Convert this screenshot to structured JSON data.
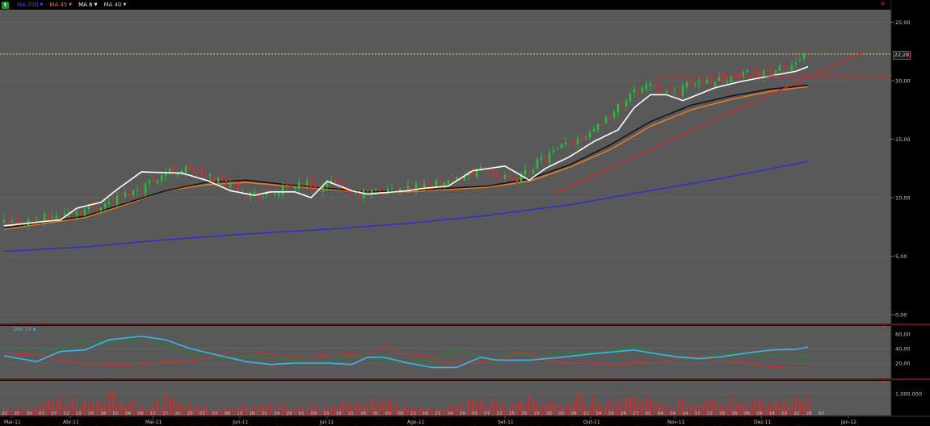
{
  "toolbar": {
    "symbol_icon": "chart-logo-icon",
    "symbol_label": "",
    "ma200_label": "MA 200",
    "ma45_label": "MA 45",
    "ma6_label": "MA 6",
    "ma40_label": "MA 40",
    "colors": {
      "ma200": "#2a2ad8",
      "ma45": "#f07a20",
      "ma6": "#ffffff",
      "ma40": "#101010",
      "symbol": "#e02a2a"
    }
  },
  "panels": {
    "dmi": {
      "label": "DMI 10",
      "color": "#3ab6e8"
    },
    "volume": {
      "label": "",
      "color": "#e02a2a"
    }
  },
  "last_price_label": "22,28",
  "chart_data": {
    "type": "candlestick",
    "title": "",
    "price_axis": {
      "ticks": [
        "25,00",
        "20,00",
        "15,00",
        "10,00",
        "5,00",
        "0,00"
      ],
      "ylim": [
        0,
        26.5
      ]
    },
    "dmi_axis": {
      "ticks": [
        "60,00",
        "40,00",
        "20,00"
      ]
    },
    "volume_axis": {
      "ticks": [
        "1.000.000"
      ]
    },
    "x_day_ticks": [
      "22",
      "25",
      "30",
      "01",
      "07",
      "12",
      "15",
      "20",
      "26",
      "02",
      "04",
      "09",
      "12",
      "17",
      "20",
      "25",
      "01",
      "03",
      "08",
      "13",
      "16",
      "21",
      "24",
      "29",
      "01",
      "08",
      "13",
      "18",
      "21",
      "26",
      "01",
      "03",
      "08",
      "13",
      "16",
      "21",
      "24",
      "29",
      "01",
      "07",
      "12",
      "15",
      "20",
      "23",
      "28",
      "03",
      "06",
      "11",
      "14",
      "19",
      "24",
      "27",
      "01",
      "04",
      "09",
      "14",
      "17",
      "22",
      "25",
      "30",
      "06",
      "09",
      "14",
      "19",
      "22",
      "28",
      "03"
    ],
    "x_month_ticks": [
      "Mar-11",
      "Abr-11",
      "Mai-11",
      "Jun-11",
      "Jul-11",
      "Ago-11",
      "Set-11",
      "Out-11",
      "Nov-11",
      "Dez-11",
      "Jan-12"
    ],
    "price_path": [
      [
        0,
        7.8
      ],
      [
        8,
        8.1
      ],
      [
        20,
        9.0
      ],
      [
        26,
        9.6
      ],
      [
        34,
        10.9
      ],
      [
        40,
        12.2
      ],
      [
        46,
        12.5
      ],
      [
        50,
        11.8
      ],
      [
        56,
        11.3
      ],
      [
        60,
        10.5
      ],
      [
        64,
        10.1
      ],
      [
        70,
        10.8
      ],
      [
        74,
        11.4
      ],
      [
        78,
        10.7
      ],
      [
        83,
        11.4
      ],
      [
        85,
        10.2
      ],
      [
        90,
        10.5
      ],
      [
        96,
        10.6
      ],
      [
        100,
        10.8
      ],
      [
        104,
        11.2
      ],
      [
        110,
        11.2
      ],
      [
        116,
        12.2
      ],
      [
        120,
        12.4
      ],
      [
        126,
        11.2
      ],
      [
        132,
        13.0
      ],
      [
        138,
        14.3
      ],
      [
        144,
        15.5
      ],
      [
        150,
        17.0
      ],
      [
        155,
        18.8
      ],
      [
        160,
        19.8
      ],
      [
        165,
        18.9
      ],
      [
        170,
        19.7
      ],
      [
        176,
        20.1
      ],
      [
        182,
        20.4
      ],
      [
        188,
        20.9
      ],
      [
        194,
        21.0
      ],
      [
        199,
        22.28
      ]
    ],
    "ma6_path": [
      [
        0,
        7.6
      ],
      [
        14,
        8.1
      ],
      [
        18,
        9.1
      ],
      [
        24,
        9.6
      ],
      [
        28,
        10.7
      ],
      [
        34,
        12.2
      ],
      [
        44,
        12.1
      ],
      [
        50,
        11.5
      ],
      [
        56,
        10.6
      ],
      [
        62,
        10.2
      ],
      [
        66,
        10.5
      ],
      [
        72,
        10.5
      ],
      [
        76,
        10.0
      ],
      [
        80,
        11.4
      ],
      [
        86,
        10.6
      ],
      [
        90,
        10.3
      ],
      [
        100,
        10.6
      ],
      [
        104,
        10.8
      ],
      [
        110,
        11.0
      ],
      [
        116,
        12.3
      ],
      [
        120,
        12.5
      ],
      [
        124,
        12.7
      ],
      [
        130,
        11.5
      ],
      [
        134,
        12.5
      ],
      [
        140,
        13.5
      ],
      [
        146,
        14.8
      ],
      [
        152,
        15.8
      ],
      [
        156,
        17.7
      ],
      [
        160,
        18.8
      ],
      [
        164,
        18.8
      ],
      [
        168,
        18.3
      ],
      [
        176,
        19.4
      ],
      [
        182,
        19.9
      ],
      [
        188,
        20.3
      ],
      [
        196,
        20.8
      ],
      [
        199,
        21.2
      ]
    ],
    "ma40_path": [
      [
        0,
        7.4
      ],
      [
        10,
        7.9
      ],
      [
        20,
        8.4
      ],
      [
        30,
        9.5
      ],
      [
        40,
        10.6
      ],
      [
        50,
        11.3
      ],
      [
        60,
        11.5
      ],
      [
        70,
        11.1
      ],
      [
        80,
        10.8
      ],
      [
        90,
        10.5
      ],
      [
        100,
        10.6
      ],
      [
        110,
        10.8
      ],
      [
        120,
        11.0
      ],
      [
        130,
        11.6
      ],
      [
        140,
        12.8
      ],
      [
        150,
        14.5
      ],
      [
        160,
        16.5
      ],
      [
        170,
        17.9
      ],
      [
        180,
        18.7
      ],
      [
        190,
        19.3
      ],
      [
        199,
        19.6
      ]
    ],
    "ma45_path": [
      [
        0,
        7.3
      ],
      [
        10,
        7.8
      ],
      [
        20,
        8.3
      ],
      [
        30,
        9.4
      ],
      [
        40,
        10.6
      ],
      [
        50,
        11.1
      ],
      [
        60,
        11.3
      ],
      [
        70,
        11.0
      ],
      [
        80,
        10.7
      ],
      [
        90,
        10.5
      ],
      [
        100,
        10.5
      ],
      [
        110,
        10.7
      ],
      [
        120,
        10.9
      ],
      [
        130,
        11.4
      ],
      [
        140,
        12.6
      ],
      [
        150,
        14.1
      ],
      [
        160,
        16.1
      ],
      [
        170,
        17.5
      ],
      [
        180,
        18.4
      ],
      [
        190,
        19.1
      ],
      [
        199,
        19.5
      ]
    ],
    "ma200_path": [
      [
        0,
        5.4
      ],
      [
        20,
        5.8
      ],
      [
        40,
        6.4
      ],
      [
        60,
        6.9
      ],
      [
        80,
        7.3
      ],
      [
        100,
        7.8
      ],
      [
        120,
        8.5
      ],
      [
        140,
        9.4
      ],
      [
        160,
        10.6
      ],
      [
        180,
        11.8
      ],
      [
        199,
        13.1
      ]
    ],
    "dmi_plus_path": [
      [
        0,
        44
      ],
      [
        8,
        35
      ],
      [
        14,
        40
      ],
      [
        18,
        52
      ],
      [
        24,
        48
      ],
      [
        30,
        50
      ],
      [
        36,
        52
      ],
      [
        42,
        38
      ],
      [
        48,
        30
      ],
      [
        56,
        27
      ],
      [
        62,
        30
      ],
      [
        68,
        26
      ],
      [
        74,
        23
      ],
      [
        80,
        23
      ],
      [
        86,
        30
      ],
      [
        92,
        26
      ],
      [
        100,
        20
      ],
      [
        106,
        24
      ],
      [
        112,
        38
      ],
      [
        116,
        34
      ],
      [
        120,
        24
      ],
      [
        126,
        35
      ],
      [
        132,
        28
      ],
      [
        138,
        36
      ],
      [
        146,
        34
      ],
      [
        152,
        38
      ],
      [
        156,
        42
      ],
      [
        162,
        32
      ],
      [
        170,
        24
      ],
      [
        176,
        31
      ],
      [
        182,
        34
      ],
      [
        188,
        30
      ],
      [
        194,
        30
      ],
      [
        199,
        28
      ]
    ],
    "dmi_minus_path": [
      [
        0,
        34
      ],
      [
        8,
        32
      ],
      [
        14,
        24
      ],
      [
        22,
        18
      ],
      [
        30,
        17
      ],
      [
        38,
        21
      ],
      [
        44,
        22
      ],
      [
        50,
        26
      ],
      [
        56,
        36
      ],
      [
        62,
        36
      ],
      [
        68,
        29
      ],
      [
        74,
        29
      ],
      [
        80,
        31
      ],
      [
        86,
        33
      ],
      [
        90,
        28
      ],
      [
        94,
        44
      ],
      [
        98,
        32
      ],
      [
        104,
        30
      ],
      [
        110,
        20
      ],
      [
        116,
        20
      ],
      [
        122,
        24
      ],
      [
        128,
        36
      ],
      [
        134,
        24
      ],
      [
        140,
        20
      ],
      [
        146,
        20
      ],
      [
        152,
        16
      ],
      [
        156,
        22
      ],
      [
        162,
        20
      ],
      [
        170,
        30
      ],
      [
        176,
        23
      ],
      [
        182,
        22
      ],
      [
        188,
        16
      ],
      [
        194,
        14
      ],
      [
        199,
        14
      ]
    ],
    "adx_path": [
      [
        0,
        30
      ],
      [
        8,
        22
      ],
      [
        14,
        36
      ],
      [
        20,
        38
      ],
      [
        26,
        52
      ],
      [
        34,
        57
      ],
      [
        40,
        52
      ],
      [
        46,
        40
      ],
      [
        52,
        32
      ],
      [
        60,
        22
      ],
      [
        66,
        18
      ],
      [
        72,
        20
      ],
      [
        80,
        20
      ],
      [
        86,
        18
      ],
      [
        90,
        28
      ],
      [
        94,
        28
      ],
      [
        100,
        20
      ],
      [
        106,
        14
      ],
      [
        112,
        14
      ],
      [
        118,
        28
      ],
      [
        122,
        24
      ],
      [
        130,
        24
      ],
      [
        138,
        28
      ],
      [
        146,
        33
      ],
      [
        152,
        36
      ],
      [
        156,
        38
      ],
      [
        160,
        34
      ],
      [
        166,
        29
      ],
      [
        172,
        26
      ],
      [
        178,
        29
      ],
      [
        184,
        34
      ],
      [
        190,
        38
      ],
      [
        196,
        39
      ],
      [
        199,
        42
      ]
    ],
    "volume_profile": [
      [
        0,
        0.15
      ],
      [
        8,
        0.25
      ],
      [
        14,
        0.55
      ],
      [
        18,
        0.45
      ],
      [
        22,
        0.5
      ],
      [
        28,
        0.7
      ],
      [
        34,
        0.3
      ],
      [
        40,
        0.55
      ],
      [
        44,
        0.35
      ],
      [
        50,
        0.3
      ],
      [
        56,
        0.25
      ],
      [
        62,
        0.3
      ],
      [
        68,
        0.35
      ],
      [
        74,
        0.3
      ],
      [
        78,
        0.25
      ],
      [
        84,
        0.35
      ],
      [
        92,
        0.6
      ],
      [
        98,
        0.3
      ],
      [
        104,
        0.4
      ],
      [
        108,
        0.2
      ],
      [
        112,
        0.3
      ],
      [
        116,
        0.45
      ],
      [
        120,
        0.5
      ],
      [
        124,
        0.3
      ],
      [
        128,
        0.6
      ],
      [
        134,
        0.5
      ],
      [
        140,
        0.6
      ],
      [
        146,
        0.55
      ],
      [
        152,
        0.5
      ],
      [
        156,
        0.5
      ],
      [
        160,
        0.5
      ],
      [
        164,
        0.35
      ],
      [
        170,
        0.55
      ],
      [
        176,
        0.45
      ],
      [
        182,
        0.5
      ],
      [
        186,
        0.45
      ],
      [
        190,
        0.4
      ],
      [
        196,
        0.5
      ],
      [
        199,
        0.55
      ]
    ]
  }
}
